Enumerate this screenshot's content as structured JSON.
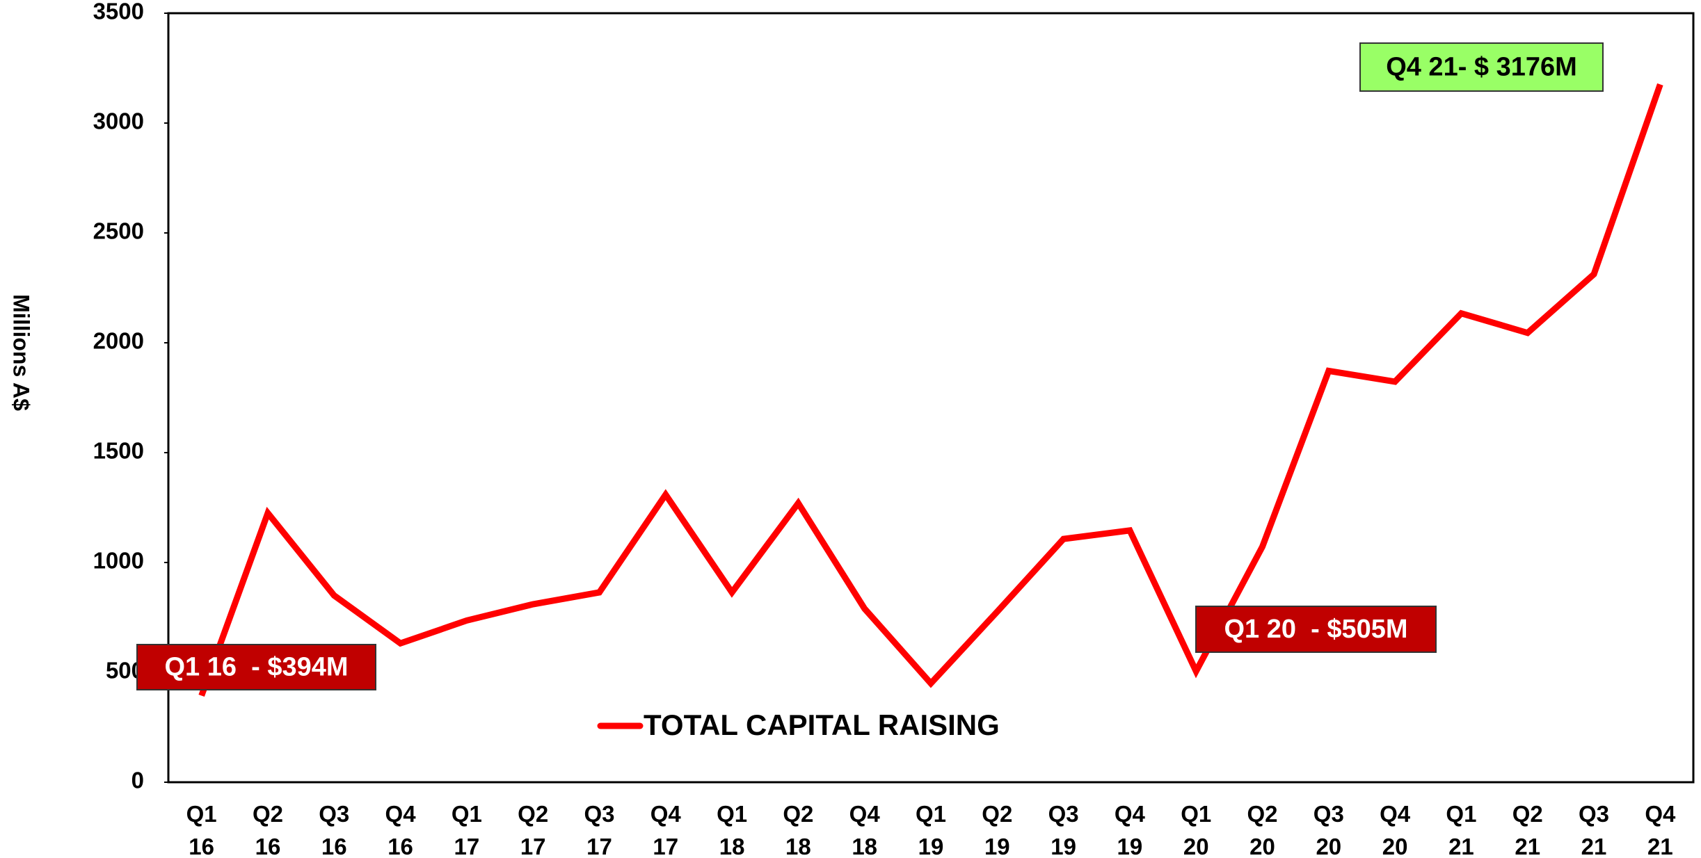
{
  "chart_data": {
    "type": "line",
    "y_label": "Millions A$",
    "categories": [
      "Q1 16",
      "Q2 16",
      "Q3 16",
      "Q4 16",
      "Q1 17",
      "Q2 17",
      "Q3 17",
      "Q4 17",
      "Q1 18",
      "Q2 18",
      "Q4 18",
      "Q1 19",
      "Q2 19",
      "Q3 19",
      "Q4 19",
      "Q1 20",
      "Q2 20",
      "Q3 20",
      "Q4 20",
      "Q1 21",
      "Q2 21",
      "Q3 21",
      "Q4 21"
    ],
    "series": [
      {
        "name": "TOTAL CAPITAL RAISING",
        "color": "#ff0000",
        "values": [
          394,
          1225,
          850,
          632,
          736,
          810,
          864,
          1309,
          864,
          1270,
          790,
          450,
          776,
          1107,
          1146,
          505,
          1072,
          1872,
          1823,
          2134,
          2045,
          2312,
          3176
        ]
      }
    ],
    "ylim": [
      0,
      3500
    ],
    "yticks": [
      0,
      500,
      1000,
      1500,
      2000,
      2500,
      3000,
      3500
    ],
    "annotations": [
      {
        "text": "Q1 16  - $394M",
        "color": "#c00000",
        "text_color": "#ffffff"
      },
      {
        "text": "Q1 20  - $505M",
        "color": "#c00000",
        "text_color": "#ffffff"
      },
      {
        "text": "Q4 21- $ 3176M",
        "color": "#99ff66",
        "text_color": "#000000"
      }
    ]
  }
}
